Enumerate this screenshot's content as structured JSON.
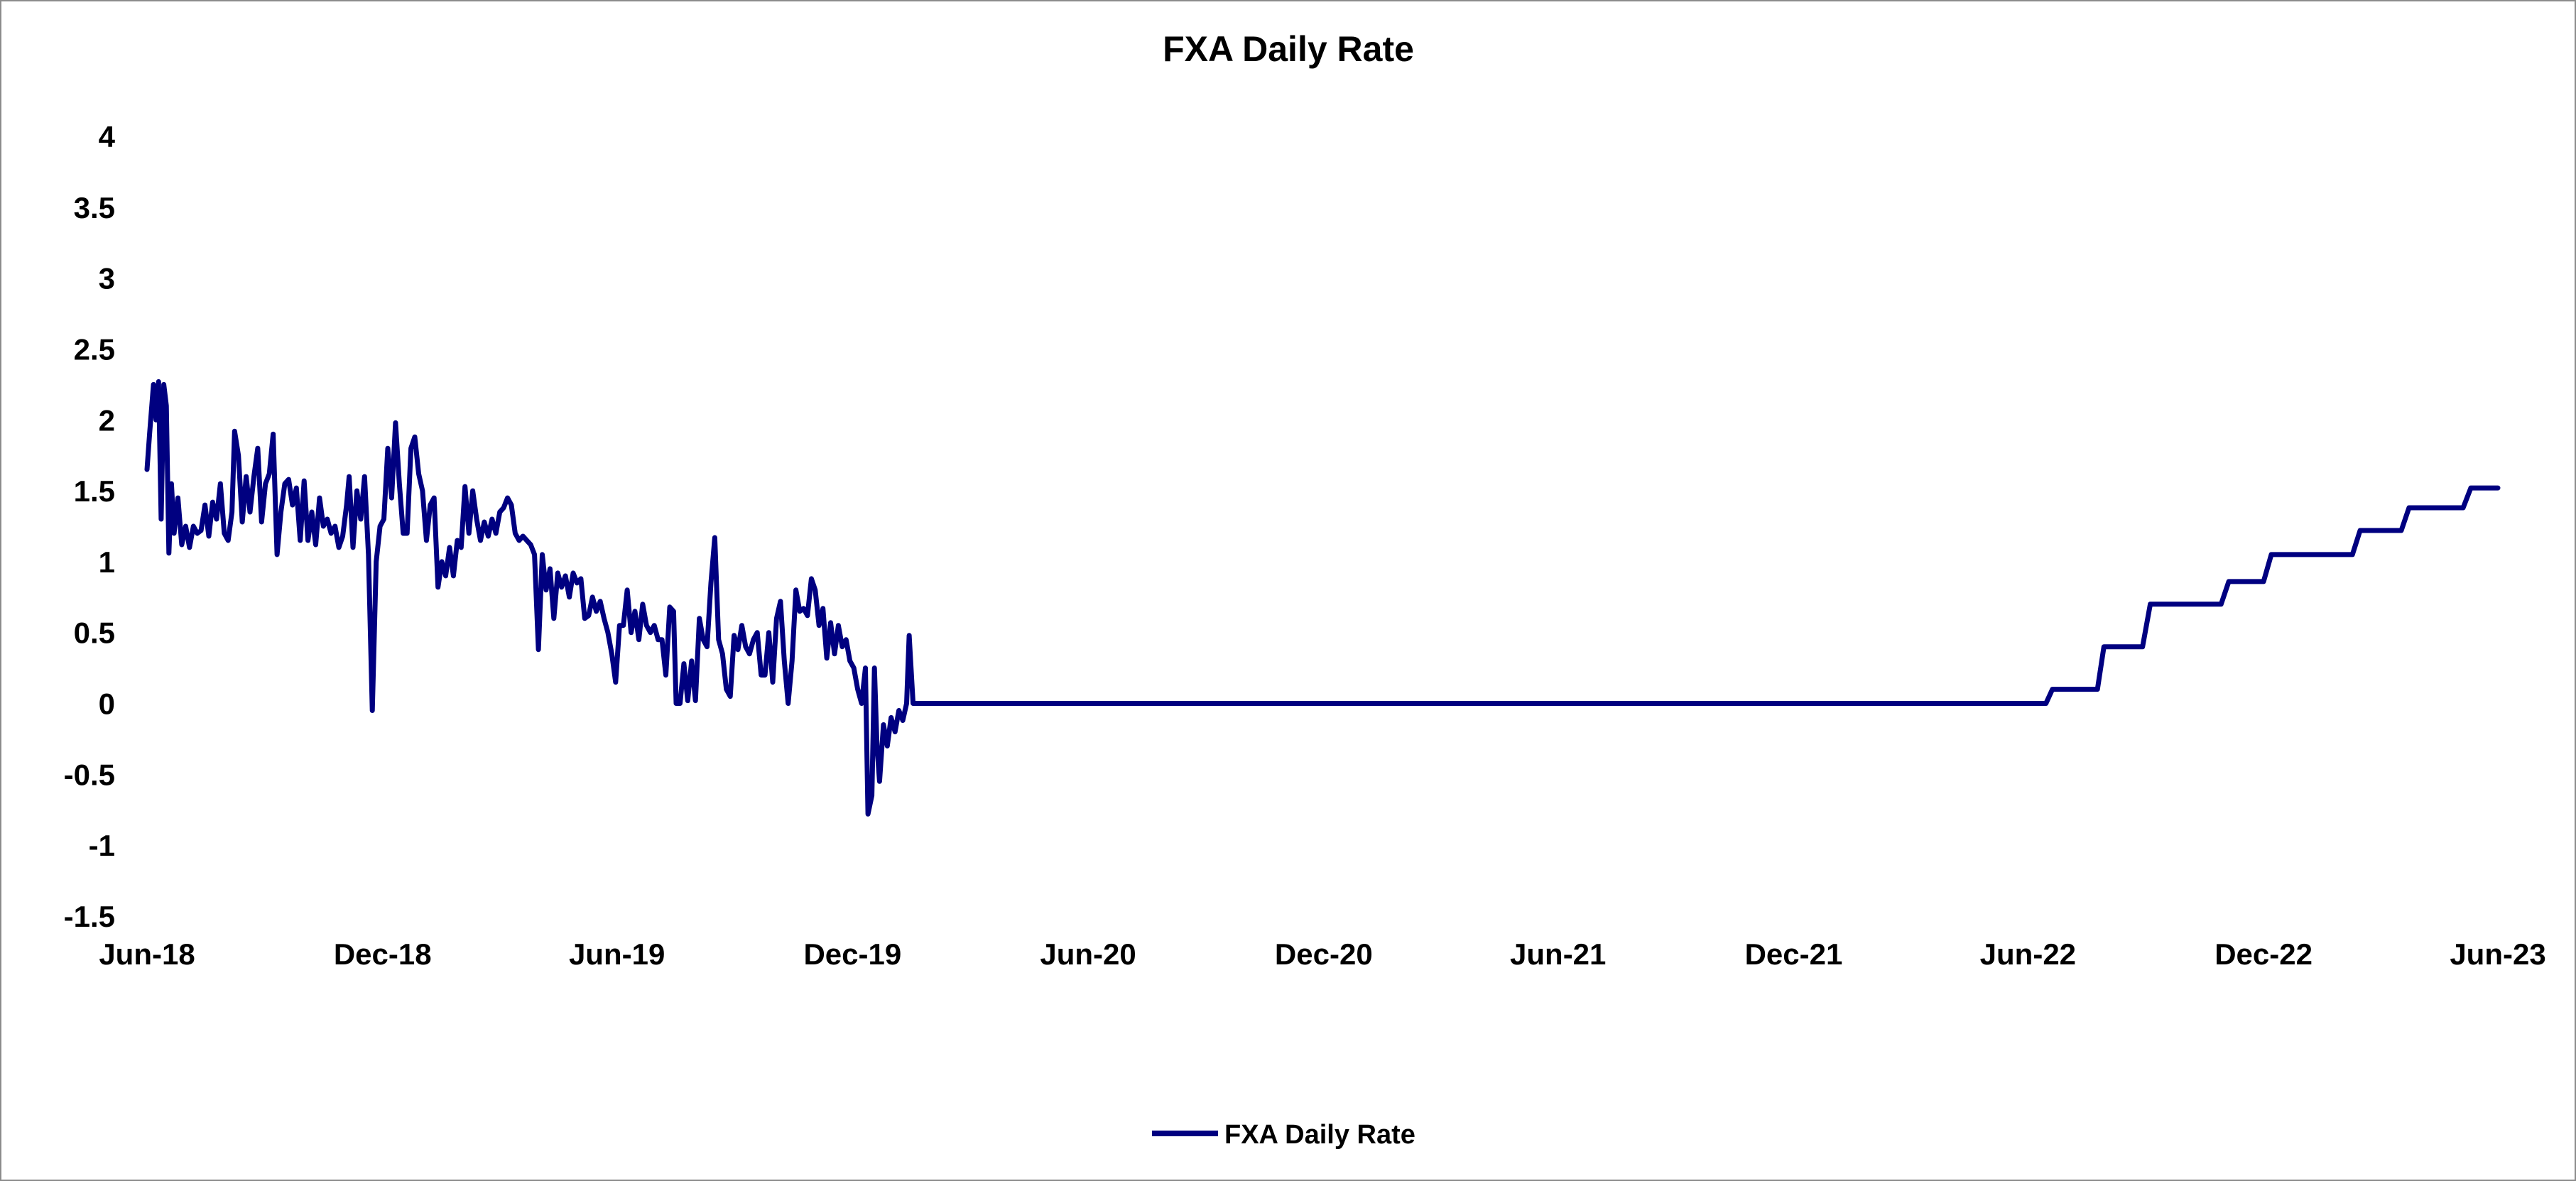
{
  "chart_data": {
    "type": "line",
    "title": "FXA Daily Rate",
    "xlabel": "",
    "ylabel": "",
    "ylim": [
      -1.5,
      4
    ],
    "y_ticks": [
      4,
      3.5,
      3,
      2.5,
      2,
      1.5,
      1,
      0.5,
      0,
      -0.5,
      -1,
      -1.5
    ],
    "x_range": [
      "2018-06",
      "2023-06"
    ],
    "x_ticks": [
      {
        "date": "2018-06",
        "label": "Jun-18"
      },
      {
        "date": "2018-12",
        "label": "Dec-18"
      },
      {
        "date": "2019-06",
        "label": "Jun-19"
      },
      {
        "date": "2019-12",
        "label": "Dec-19"
      },
      {
        "date": "2020-06",
        "label": "Jun-20"
      },
      {
        "date": "2020-12",
        "label": "Dec-20"
      },
      {
        "date": "2021-06",
        "label": "Jun-21"
      },
      {
        "date": "2021-12",
        "label": "Dec-21"
      },
      {
        "date": "2022-06",
        "label": "Jun-22"
      },
      {
        "date": "2022-12",
        "label": "Dec-22"
      },
      {
        "date": "2023-06",
        "label": "Jun-23"
      }
    ],
    "grid": false,
    "legend_position": "bottom",
    "series": [
      {
        "name": "FXA Daily Rate",
        "color": "#000080",
        "points": [
          [
            "2018-06-01",
            1.65
          ],
          [
            "2018-06-03",
            1.9
          ],
          [
            "2018-06-06",
            2.25
          ],
          [
            "2018-06-08",
            2.0
          ],
          [
            "2018-06-10",
            2.27
          ],
          [
            "2018-06-12",
            1.3
          ],
          [
            "2018-06-14",
            2.25
          ],
          [
            "2018-06-16",
            2.1
          ],
          [
            "2018-06-18",
            1.06
          ],
          [
            "2018-06-20",
            1.55
          ],
          [
            "2018-06-22",
            1.2
          ],
          [
            "2018-06-25",
            1.45
          ],
          [
            "2018-06-28",
            1.12
          ],
          [
            "2018-07-01",
            1.25
          ],
          [
            "2018-07-04",
            1.1
          ],
          [
            "2018-07-07",
            1.25
          ],
          [
            "2018-07-10",
            1.2
          ],
          [
            "2018-07-13",
            1.22
          ],
          [
            "2018-07-16",
            1.4
          ],
          [
            "2018-07-19",
            1.18
          ],
          [
            "2018-07-22",
            1.42
          ],
          [
            "2018-07-25",
            1.3
          ],
          [
            "2018-07-28",
            1.55
          ],
          [
            "2018-07-31",
            1.2
          ],
          [
            "2018-08-03",
            1.15
          ],
          [
            "2018-08-06",
            1.35
          ],
          [
            "2018-08-08",
            1.92
          ],
          [
            "2018-08-11",
            1.75
          ],
          [
            "2018-08-14",
            1.28
          ],
          [
            "2018-08-17",
            1.6
          ],
          [
            "2018-08-20",
            1.35
          ],
          [
            "2018-08-23",
            1.6
          ],
          [
            "2018-08-26",
            1.8
          ],
          [
            "2018-08-29",
            1.28
          ],
          [
            "2018-09-01",
            1.55
          ],
          [
            "2018-09-04",
            1.62
          ],
          [
            "2018-09-07",
            1.9
          ],
          [
            "2018-09-10",
            1.05
          ],
          [
            "2018-09-13",
            1.35
          ],
          [
            "2018-09-16",
            1.55
          ],
          [
            "2018-09-19",
            1.58
          ],
          [
            "2018-09-22",
            1.4
          ],
          [
            "2018-09-25",
            1.52
          ],
          [
            "2018-09-28",
            1.15
          ],
          [
            "2018-10-01",
            1.57
          ],
          [
            "2018-10-04",
            1.15
          ],
          [
            "2018-10-07",
            1.35
          ],
          [
            "2018-10-10",
            1.12
          ],
          [
            "2018-10-13",
            1.45
          ],
          [
            "2018-10-16",
            1.25
          ],
          [
            "2018-10-19",
            1.3
          ],
          [
            "2018-10-22",
            1.2
          ],
          [
            "2018-10-25",
            1.25
          ],
          [
            "2018-10-28",
            1.1
          ],
          [
            "2018-10-31",
            1.18
          ],
          [
            "2018-11-03",
            1.4
          ],
          [
            "2018-11-05",
            1.6
          ],
          [
            "2018-11-08",
            1.1
          ],
          [
            "2018-11-11",
            1.5
          ],
          [
            "2018-11-14",
            1.3
          ],
          [
            "2018-11-17",
            1.6
          ],
          [
            "2018-11-20",
            1.05
          ],
          [
            "2018-11-23",
            -0.05
          ],
          [
            "2018-11-26",
            1.0
          ],
          [
            "2018-11-29",
            1.25
          ],
          [
            "2018-12-02",
            1.3
          ],
          [
            "2018-12-05",
            1.8
          ],
          [
            "2018-12-08",
            1.45
          ],
          [
            "2018-12-11",
            1.98
          ],
          [
            "2018-12-14",
            1.55
          ],
          [
            "2018-12-17",
            1.2
          ],
          [
            "2018-12-20",
            1.2
          ],
          [
            "2018-12-23",
            1.8
          ],
          [
            "2018-12-26",
            1.88
          ],
          [
            "2018-12-29",
            1.62
          ],
          [
            "2019-01-01",
            1.5
          ],
          [
            "2019-01-04",
            1.15
          ],
          [
            "2019-01-07",
            1.4
          ],
          [
            "2019-01-10",
            1.45
          ],
          [
            "2019-01-13",
            0.82
          ],
          [
            "2019-01-16",
            1.0
          ],
          [
            "2019-01-19",
            0.9
          ],
          [
            "2019-01-22",
            1.1
          ],
          [
            "2019-01-25",
            0.9
          ],
          [
            "2019-01-28",
            1.15
          ],
          [
            "2019-01-31",
            1.1
          ],
          [
            "2019-02-03",
            1.53
          ],
          [
            "2019-02-06",
            1.2
          ],
          [
            "2019-02-09",
            1.5
          ],
          [
            "2019-02-12",
            1.3
          ],
          [
            "2019-02-15",
            1.15
          ],
          [
            "2019-02-18",
            1.28
          ],
          [
            "2019-02-21",
            1.18
          ],
          [
            "2019-02-24",
            1.3
          ],
          [
            "2019-02-27",
            1.2
          ],
          [
            "2019-03-02",
            1.35
          ],
          [
            "2019-03-05",
            1.38
          ],
          [
            "2019-03-08",
            1.45
          ],
          [
            "2019-03-11",
            1.4
          ],
          [
            "2019-03-14",
            1.2
          ],
          [
            "2019-03-17",
            1.15
          ],
          [
            "2019-03-20",
            1.18
          ],
          [
            "2019-03-23",
            1.15
          ],
          [
            "2019-03-26",
            1.12
          ],
          [
            "2019-03-29",
            1.05
          ],
          [
            "2019-04-01",
            0.38
          ],
          [
            "2019-04-04",
            1.05
          ],
          [
            "2019-04-07",
            0.8
          ],
          [
            "2019-04-10",
            0.95
          ],
          [
            "2019-04-13",
            0.6
          ],
          [
            "2019-04-16",
            0.92
          ],
          [
            "2019-04-19",
            0.82
          ],
          [
            "2019-04-22",
            0.9
          ],
          [
            "2019-04-25",
            0.75
          ],
          [
            "2019-04-28",
            0.92
          ],
          [
            "2019-05-01",
            0.85
          ],
          [
            "2019-05-04",
            0.88
          ],
          [
            "2019-05-07",
            0.6
          ],
          [
            "2019-05-10",
            0.62
          ],
          [
            "2019-05-13",
            0.75
          ],
          [
            "2019-05-16",
            0.65
          ],
          [
            "2019-05-19",
            0.72
          ],
          [
            "2019-05-22",
            0.6
          ],
          [
            "2019-05-25",
            0.5
          ],
          [
            "2019-05-28",
            0.35
          ],
          [
            "2019-05-31",
            0.15
          ],
          [
            "2019-06-03",
            0.55
          ],
          [
            "2019-06-06",
            0.55
          ],
          [
            "2019-06-09",
            0.8
          ],
          [
            "2019-06-12",
            0.5
          ],
          [
            "2019-06-15",
            0.65
          ],
          [
            "2019-06-18",
            0.45
          ],
          [
            "2019-06-21",
            0.7
          ],
          [
            "2019-06-24",
            0.55
          ],
          [
            "2019-06-27",
            0.5
          ],
          [
            "2019-06-30",
            0.55
          ],
          [
            "2019-07-03",
            0.45
          ],
          [
            "2019-07-06",
            0.45
          ],
          [
            "2019-07-09",
            0.2
          ],
          [
            "2019-07-12",
            0.68
          ],
          [
            "2019-07-15",
            0.65
          ],
          [
            "2019-07-17",
            0.0
          ],
          [
            "2019-07-20",
            0.0
          ],
          [
            "2019-07-23",
            0.28
          ],
          [
            "2019-07-26",
            0.02
          ],
          [
            "2019-07-29",
            0.3
          ],
          [
            "2019-08-01",
            0.02
          ],
          [
            "2019-08-04",
            0.6
          ],
          [
            "2019-08-07",
            0.45
          ],
          [
            "2019-08-10",
            0.4
          ],
          [
            "2019-08-13",
            0.85
          ],
          [
            "2019-08-16",
            1.17
          ],
          [
            "2019-08-19",
            0.45
          ],
          [
            "2019-08-22",
            0.35
          ],
          [
            "2019-08-25",
            0.1
          ],
          [
            "2019-08-28",
            0.05
          ],
          [
            "2019-08-31",
            0.48
          ],
          [
            "2019-09-03",
            0.38
          ],
          [
            "2019-09-06",
            0.55
          ],
          [
            "2019-09-09",
            0.4
          ],
          [
            "2019-09-12",
            0.35
          ],
          [
            "2019-09-15",
            0.45
          ],
          [
            "2019-09-18",
            0.5
          ],
          [
            "2019-09-21",
            0.2
          ],
          [
            "2019-09-24",
            0.2
          ],
          [
            "2019-09-27",
            0.5
          ],
          [
            "2019-09-30",
            0.15
          ],
          [
            "2019-10-03",
            0.6
          ],
          [
            "2019-10-06",
            0.72
          ],
          [
            "2019-10-09",
            0.3
          ],
          [
            "2019-10-12",
            0.0
          ],
          [
            "2019-10-15",
            0.3
          ],
          [
            "2019-10-18",
            0.8
          ],
          [
            "2019-10-21",
            0.65
          ],
          [
            "2019-10-24",
            0.67
          ],
          [
            "2019-10-27",
            0.62
          ],
          [
            "2019-10-30",
            0.88
          ],
          [
            "2019-11-02",
            0.8
          ],
          [
            "2019-11-05",
            0.55
          ],
          [
            "2019-11-08",
            0.67
          ],
          [
            "2019-11-11",
            0.32
          ],
          [
            "2019-11-14",
            0.57
          ],
          [
            "2019-11-17",
            0.35
          ],
          [
            "2019-11-20",
            0.55
          ],
          [
            "2019-11-23",
            0.4
          ],
          [
            "2019-11-26",
            0.45
          ],
          [
            "2019-11-29",
            0.3
          ],
          [
            "2019-12-02",
            0.25
          ],
          [
            "2019-12-05",
            0.1
          ],
          [
            "2019-12-08",
            0.0
          ],
          [
            "2019-12-11",
            0.25
          ],
          [
            "2019-12-13",
            -0.78
          ],
          [
            "2019-12-16",
            -0.65
          ],
          [
            "2019-12-18",
            0.25
          ],
          [
            "2019-12-20",
            -0.3
          ],
          [
            "2019-12-22",
            -0.55
          ],
          [
            "2019-12-25",
            -0.15
          ],
          [
            "2019-12-28",
            -0.3
          ],
          [
            "2019-12-31",
            -0.1
          ],
          [
            "2020-01-03",
            -0.2
          ],
          [
            "2020-01-06",
            -0.05
          ],
          [
            "2020-01-09",
            -0.12
          ],
          [
            "2020-01-12",
            0.0
          ],
          [
            "2020-01-14",
            0.48
          ],
          [
            "2020-01-17",
            0.0
          ],
          [
            "2022-06-15",
            0.0
          ],
          [
            "2022-06-20",
            0.1
          ],
          [
            "2022-07-25",
            0.1
          ],
          [
            "2022-07-30",
            0.4
          ],
          [
            "2022-08-29",
            0.4
          ],
          [
            "2022-09-04",
            0.7
          ],
          [
            "2022-10-29",
            0.7
          ],
          [
            "2022-11-04",
            0.86
          ],
          [
            "2022-12-01",
            0.86
          ],
          [
            "2022-12-07",
            1.05
          ],
          [
            "2023-02-08",
            1.05
          ],
          [
            "2023-02-14",
            1.22
          ],
          [
            "2023-03-18",
            1.22
          ],
          [
            "2023-03-24",
            1.38
          ],
          [
            "2023-05-05",
            1.38
          ],
          [
            "2023-05-11",
            1.52
          ],
          [
            "2023-06-01",
            1.52
          ]
        ]
      }
    ]
  }
}
